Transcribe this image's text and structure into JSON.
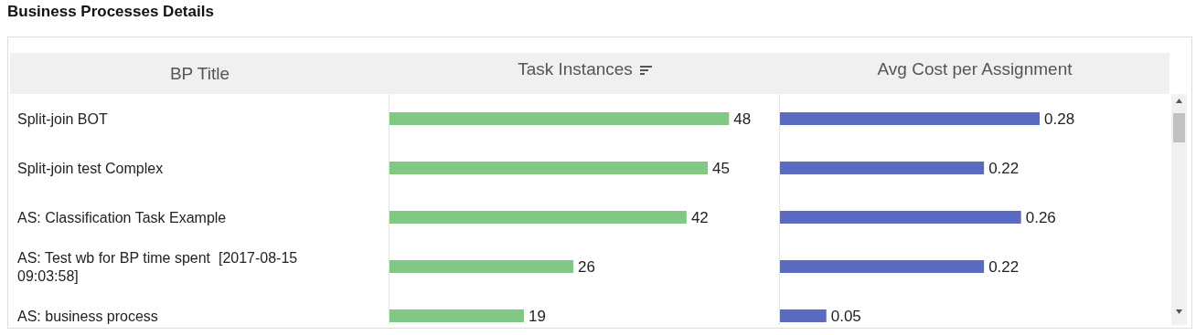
{
  "chart_data": [
    {
      "type": "bar",
      "orientation": "horizontal",
      "title": "Business Processes Details",
      "ylabel": "BP Title",
      "xlabel": "Task Instances",
      "categories": [
        "Split-join BOT",
        "Split-join test Complex",
        "AS: Classification Task Example",
        "AS: Test wb for BP time spent  [2017-08-15 09:03:58]",
        "AS: business process"
      ],
      "values": [
        48,
        45,
        42,
        26,
        19
      ],
      "color": "#80c883",
      "data_labels": true,
      "tick_labels": "y"
    },
    {
      "type": "bar",
      "orientation": "horizontal",
      "xlabel": "Avg Cost per Assignment",
      "categories": [
        null,
        null,
        null,
        null,
        null
      ],
      "values": [
        0.28,
        0.22,
        0.26,
        0.22,
        0.05
      ],
      "color": "#5c6bc2",
      "data_labels": true,
      "tick_labels": false
    }
  ]
}
